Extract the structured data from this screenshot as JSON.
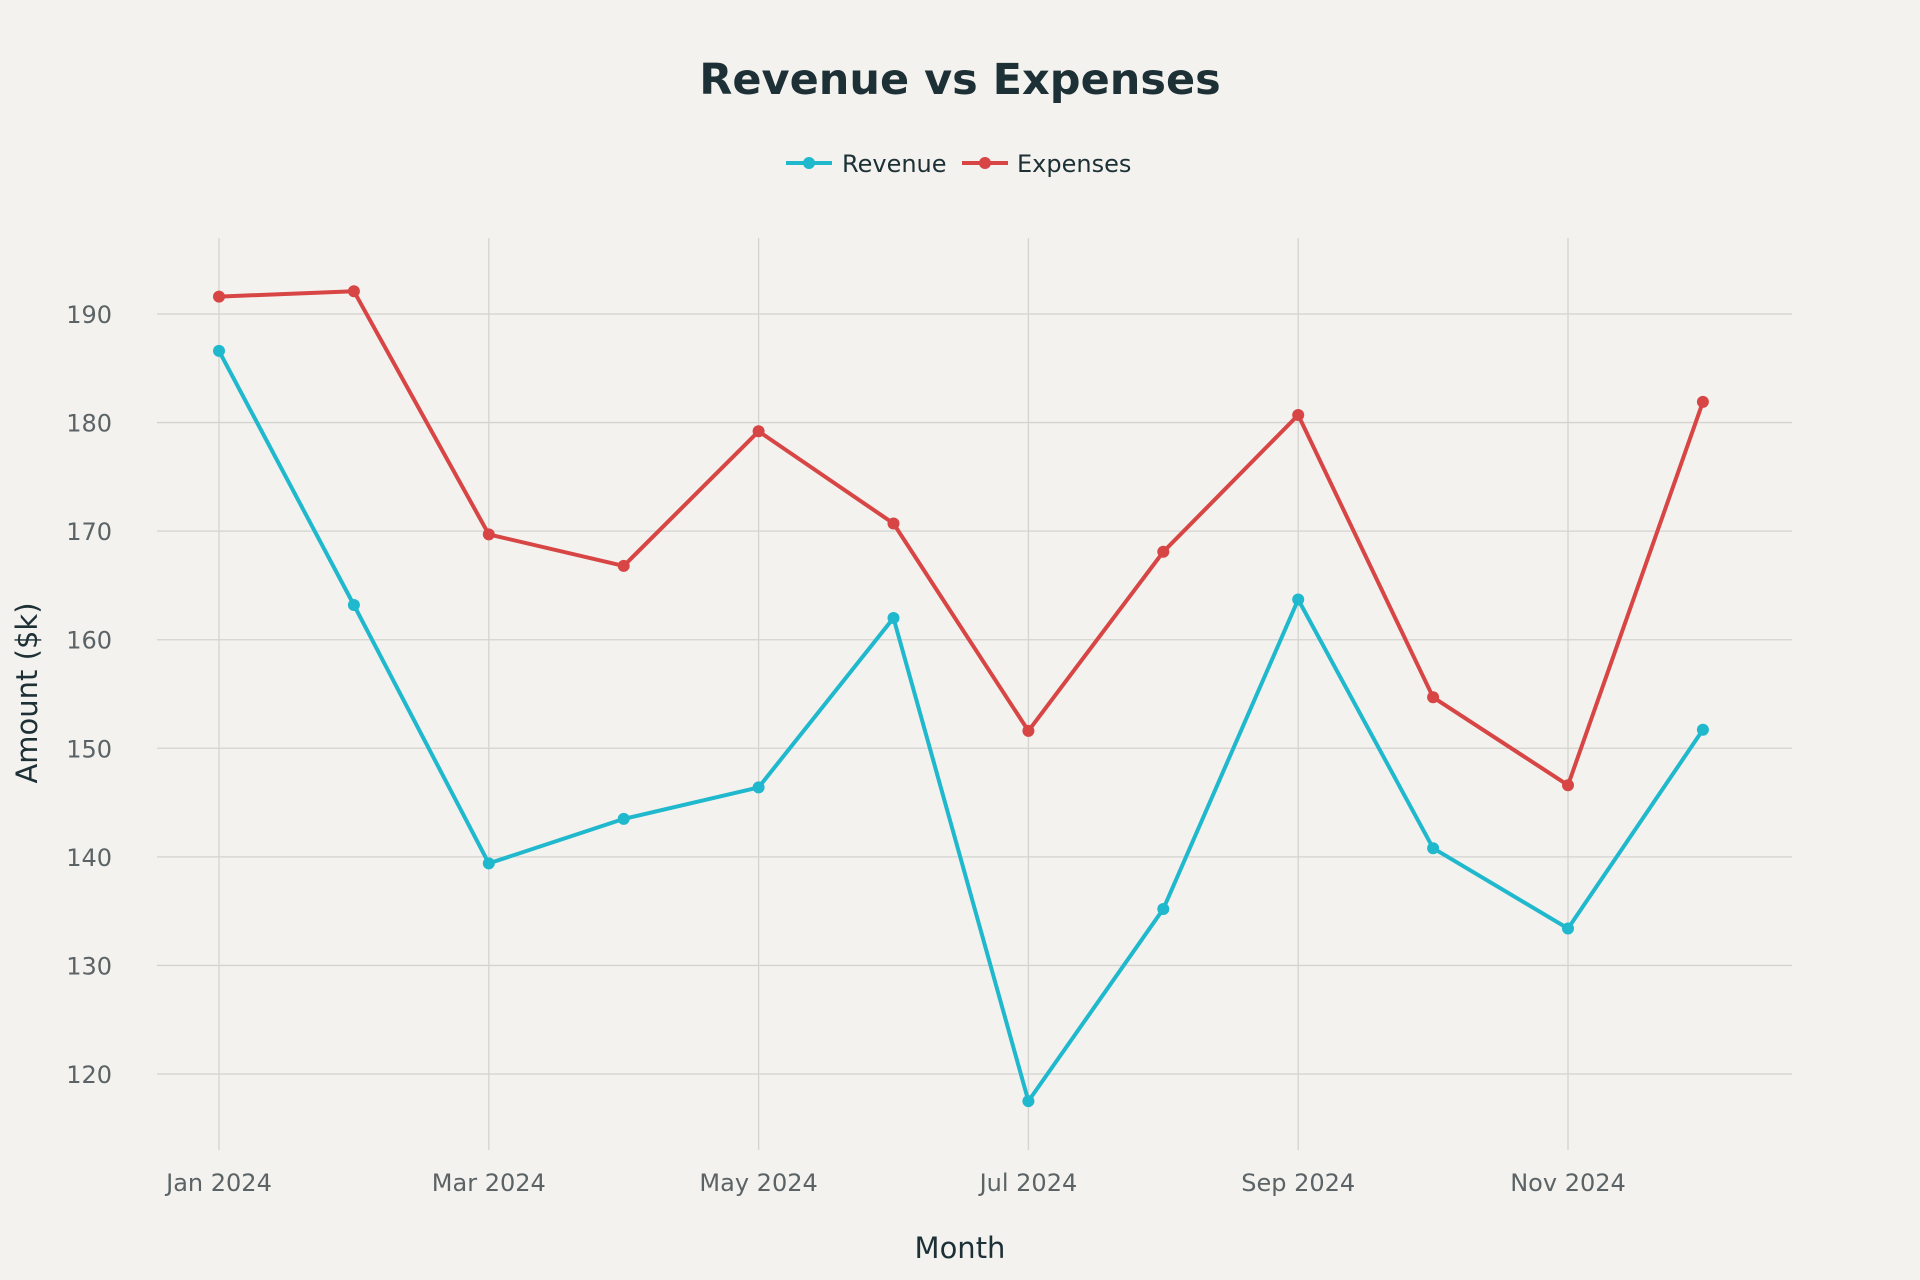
{
  "chart_data": {
    "type": "line",
    "title": "Revenue vs Expenses",
    "xlabel": "Month",
    "ylabel": "Amount ($k)",
    "x": [
      "2024-01",
      "2024-02",
      "2024-03",
      "2024-04",
      "2024-05",
      "2024-06",
      "2024-07",
      "2024-08",
      "2024-09",
      "2024-10",
      "2024-11",
      "2024-12"
    ],
    "x_ticks": [
      {
        "x": "2024-01",
        "label": "Jan 2024"
      },
      {
        "x": "2024-03",
        "label": "Mar 2024"
      },
      {
        "x": "2024-05",
        "label": "May 2024"
      },
      {
        "x": "2024-07",
        "label": "Jul 2024"
      },
      {
        "x": "2024-09",
        "label": "Sep 2024"
      },
      {
        "x": "2024-11",
        "label": "Nov 2024"
      }
    ],
    "y_ticks": [
      120,
      130,
      140,
      150,
      160,
      170,
      180,
      190
    ],
    "ylim": [
      113,
      197
    ],
    "grid": true,
    "legend_position": "top-center",
    "series": [
      {
        "name": "Revenue",
        "color": "#1fb8cd",
        "values": [
          186.6,
          163.2,
          139.4,
          143.5,
          146.4,
          162.0,
          117.5,
          135.2,
          163.7,
          140.8,
          133.4,
          151.7
        ]
      },
      {
        "name": "Expenses",
        "color": "#d84545",
        "values": [
          191.6,
          192.1,
          169.7,
          166.8,
          179.2,
          170.7,
          151.6,
          168.1,
          180.7,
          154.7,
          146.6,
          181.9
        ]
      }
    ]
  }
}
